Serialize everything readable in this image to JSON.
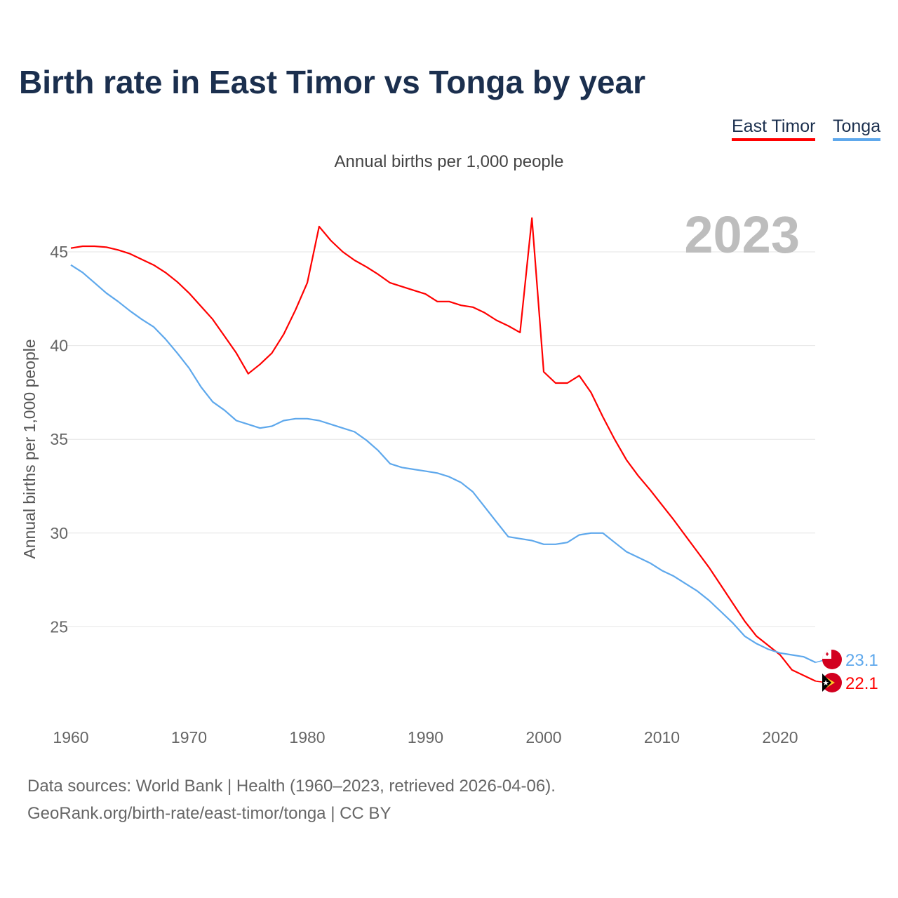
{
  "title": "Birth rate in East Timor vs Tonga by year",
  "subtitle": "Annual births per 1,000 people",
  "year_label": "2023",
  "footer": {
    "line1": "Data sources: World Bank | Health (1960–2023, retrieved 2026-04-06).",
    "line2": "GeoRank.org/birth-rate/east-timor/tonga | CC BY"
  },
  "chart_data": {
    "type": "line",
    "title": "Birth rate in East Timor vs Tonga by year",
    "xlabel": "",
    "ylabel": "Annual births per 1,000 people",
    "xlim": [
      1960,
      2023
    ],
    "ylim": [
      21,
      47
    ],
    "xticks": [
      1960,
      1970,
      1980,
      1990,
      2000,
      2010,
      2020
    ],
    "yticks": [
      25,
      30,
      35,
      40,
      45
    ],
    "grid": true,
    "legend_position": "top-right",
    "x": [
      1960,
      1961,
      1962,
      1963,
      1964,
      1965,
      1966,
      1967,
      1968,
      1969,
      1970,
      1971,
      1972,
      1973,
      1974,
      1975,
      1976,
      1977,
      1978,
      1979,
      1980,
      1981,
      1982,
      1983,
      1984,
      1985,
      1986,
      1987,
      1988,
      1989,
      1990,
      1991,
      1992,
      1993,
      1994,
      1995,
      1996,
      1997,
      1998,
      1999,
      2000,
      2001,
      2002,
      2003,
      2004,
      2005,
      2006,
      2007,
      2008,
      2009,
      2010,
      2011,
      2012,
      2013,
      2014,
      2015,
      2016,
      2017,
      2018,
      2019,
      2020,
      2021,
      2022,
      2023
    ],
    "series": [
      {
        "name": "East Timor",
        "color": "#ff0000",
        "end_label": "22.1",
        "values": [
          45.2,
          45.3,
          45.3,
          45.25,
          45.1,
          44.9,
          44.6,
          44.3,
          43.9,
          43.4,
          42.8,
          42.1,
          41.4,
          40.5,
          39.6,
          38.5,
          39.0,
          39.6,
          40.6,
          41.9,
          43.35,
          46.35,
          45.6,
          45.0,
          44.55,
          44.2,
          43.8,
          43.35,
          43.15,
          42.95,
          42.75,
          42.35,
          42.35,
          42.15,
          42.05,
          41.75,
          41.35,
          41.05,
          40.7,
          46.8,
          38.6,
          38.0,
          38.0,
          38.4,
          37.5,
          36.2,
          35.0,
          33.9,
          33.05,
          32.3,
          31.5,
          30.7,
          29.85,
          29.0,
          28.15,
          27.2,
          26.25,
          25.3,
          24.5,
          24.0,
          23.5,
          22.7,
          22.4,
          22.1
        ]
      },
      {
        "name": "Tonga",
        "color": "#5ea8ec",
        "end_label": "23.1",
        "values": [
          44.3,
          43.9,
          43.35,
          42.8,
          42.35,
          41.85,
          41.4,
          41.0,
          40.35,
          39.6,
          38.8,
          37.8,
          37.0,
          36.55,
          36.0,
          35.8,
          35.6,
          35.7,
          36.0,
          36.1,
          36.1,
          36.0,
          35.8,
          35.6,
          35.4,
          34.95,
          34.4,
          33.7,
          33.5,
          33.4,
          33.3,
          33.2,
          33.0,
          32.7,
          32.2,
          31.4,
          30.6,
          29.8,
          29.7,
          29.6,
          29.4,
          29.4,
          29.5,
          29.9,
          30.0,
          30.0,
          29.5,
          29.0,
          28.7,
          28.4,
          28.0,
          27.7,
          27.3,
          26.9,
          26.4,
          25.8,
          25.2,
          24.5,
          24.1,
          23.8,
          23.6,
          23.5,
          23.4,
          23.1
        ]
      }
    ]
  }
}
